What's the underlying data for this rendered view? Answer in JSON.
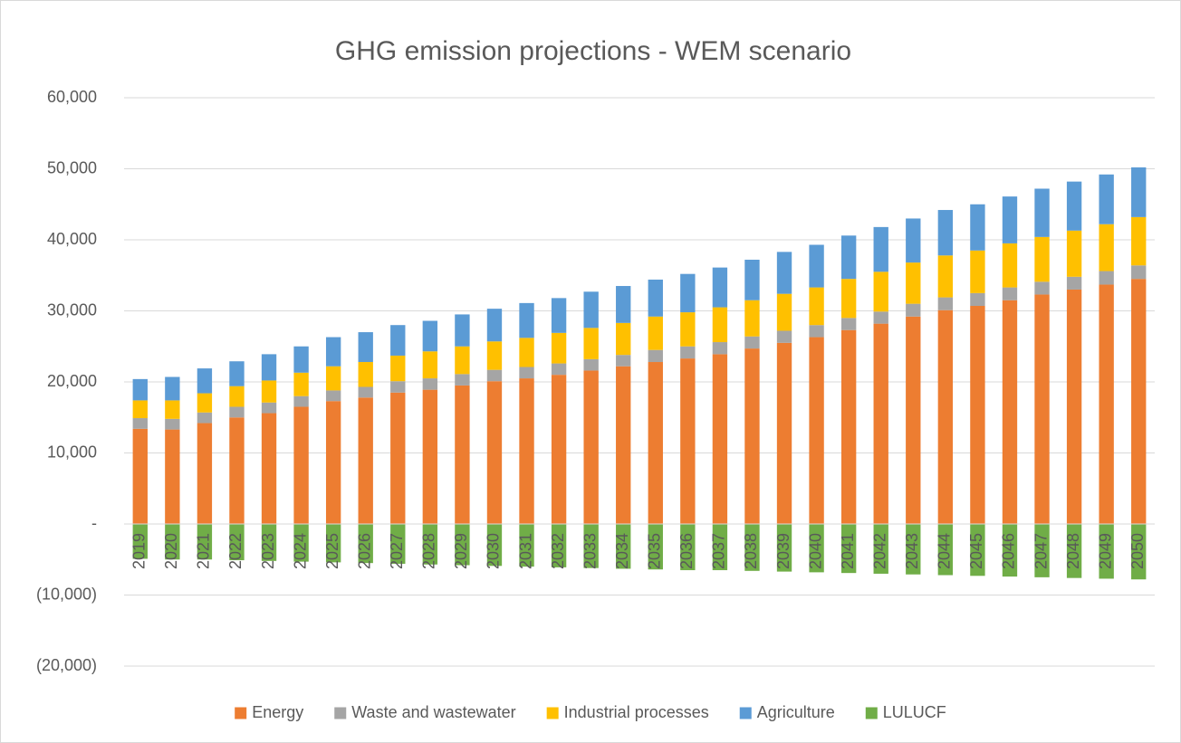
{
  "chart_data": {
    "type": "stacked_bar",
    "title": "GHG emission projections - WEM scenario",
    "categories": [
      "2019",
      "2020",
      "2021",
      "2022",
      "2023",
      "2024",
      "2025",
      "2026",
      "2027",
      "2028",
      "2029",
      "2030",
      "2031",
      "2032",
      "2033",
      "2034",
      "2035",
      "2036",
      "2037",
      "2038",
      "2039",
      "2040",
      "2041",
      "2042",
      "2043",
      "2044",
      "2045",
      "2046",
      "2047",
      "2048",
      "2049",
      "2050"
    ],
    "series": [
      {
        "name": "Energy",
        "color": "#ed7d31",
        "values": [
          13400,
          13300,
          14200,
          15000,
          15600,
          16500,
          17300,
          17800,
          18500,
          18900,
          19500,
          20100,
          20500,
          21000,
          21600,
          22200,
          22800,
          23300,
          23900,
          24700,
          25500,
          26300,
          27300,
          28200,
          29200,
          30100,
          30700,
          31500,
          32300,
          33000,
          33700,
          34500
        ]
      },
      {
        "name": "Waste and wastewater",
        "color": "#a5a5a5",
        "values": [
          1500,
          1500,
          1500,
          1500,
          1500,
          1500,
          1500,
          1500,
          1600,
          1600,
          1600,
          1600,
          1600,
          1600,
          1600,
          1600,
          1700,
          1700,
          1700,
          1700,
          1700,
          1700,
          1700,
          1700,
          1800,
          1800,
          1800,
          1800,
          1800,
          1800,
          1900,
          1900
        ]
      },
      {
        "name": "Industrial processes",
        "color": "#ffc000",
        "values": [
          2500,
          2600,
          2700,
          2900,
          3100,
          3300,
          3400,
          3500,
          3600,
          3800,
          3900,
          4000,
          4100,
          4300,
          4400,
          4500,
          4700,
          4800,
          4900,
          5100,
          5200,
          5300,
          5500,
          5600,
          5800,
          5900,
          6000,
          6200,
          6300,
          6500,
          6600,
          6800
        ]
      },
      {
        "name": "Agriculture",
        "color": "#5b9bd5",
        "values": [
          3000,
          3300,
          3500,
          3500,
          3700,
          3700,
          4100,
          4200,
          4300,
          4300,
          4500,
          4600,
          4900,
          4900,
          5100,
          5200,
          5200,
          5400,
          5600,
          5700,
          5900,
          6000,
          6100,
          6300,
          6200,
          6400,
          6500,
          6600,
          6800,
          6900,
          7000,
          7000
        ]
      },
      {
        "name": "LULUCF",
        "color": "#70ad47",
        "values": [
          -4900,
          -5000,
          -5000,
          -5100,
          -5200,
          -5300,
          -5400,
          -5500,
          -5600,
          -5700,
          -5800,
          -5900,
          -6000,
          -6100,
          -6200,
          -6300,
          -6400,
          -6500,
          -6500,
          -6600,
          -6700,
          -6800,
          -6900,
          -7000,
          -7100,
          -7200,
          -7300,
          -7400,
          -7500,
          -7600,
          -7700,
          -7800
        ]
      }
    ],
    "ylim": [
      -20000,
      60000
    ],
    "yticks": [
      {
        "value": -20000,
        "label": "(20,000)"
      },
      {
        "value": -10000,
        "label": "(10,000)"
      },
      {
        "value": 0,
        "label": "-"
      },
      {
        "value": 10000,
        "label": "10,000"
      },
      {
        "value": 20000,
        "label": "20,000"
      },
      {
        "value": 30000,
        "label": "30,000"
      },
      {
        "value": 40000,
        "label": "40,000"
      },
      {
        "value": 50000,
        "label": "50,000"
      },
      {
        "value": 60000,
        "label": "60,000"
      }
    ],
    "grid": true,
    "legend": "bottom"
  }
}
